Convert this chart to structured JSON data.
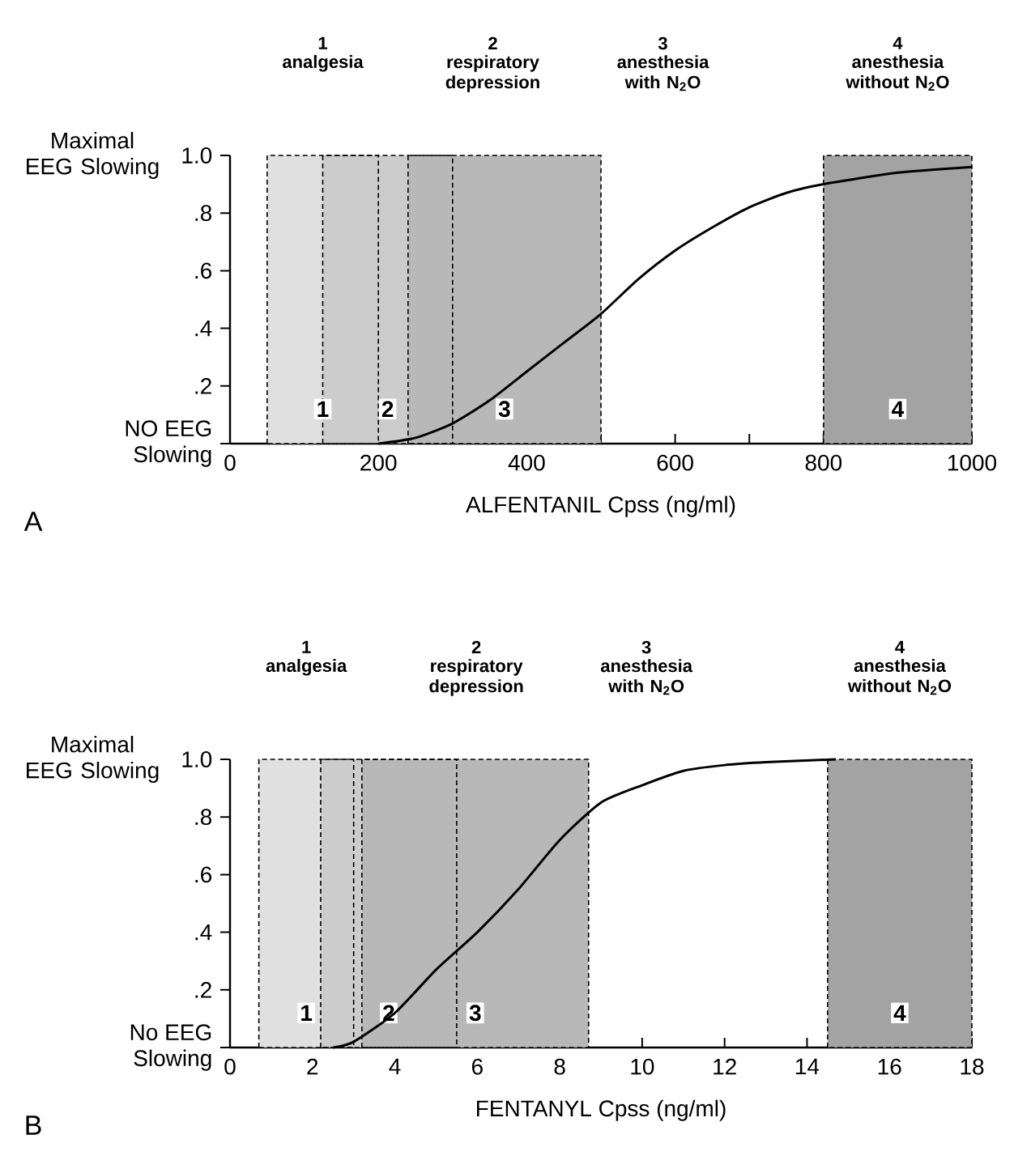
{
  "chart_data": [
    {
      "type": "line",
      "xlabel": "ALFENTANIL Cpss (ng/ml)",
      "ylabel": "Maximal EEG Slowing",
      "xlim": [
        0,
        1000
      ],
      "ylim": [
        0,
        1
      ],
      "xticks": [
        0,
        {
          "value": 100,
          "label": null
        },
        200,
        {
          "value": 300,
          "label": null
        },
        400,
        {
          "value": 500,
          "label": null
        },
        600,
        {
          "value": 700,
          "label": null
        },
        800,
        {
          "value": 900,
          "label": null
        },
        1000
      ],
      "yticks": [
        {
          "value": 0,
          "label": "NO EEG Slowing"
        },
        {
          "value": 0.2,
          "label": ".2"
        },
        {
          "value": 0.4,
          "label": ".4"
        },
        {
          "value": 0.6,
          "label": ".6"
        },
        {
          "value": 0.8,
          "label": ".8"
        },
        {
          "value": 1,
          "label": "1.0"
        }
      ],
      "series": [
        {
          "color": "#000000",
          "x": [
            200,
            250,
            300,
            350,
            400,
            450,
            500,
            550,
            600,
            650,
            700,
            750,
            800,
            900,
            1000
          ],
          "values": [
            0,
            0.02,
            0.07,
            0.15,
            0.25,
            0.35,
            0.45,
            0.57,
            0.67,
            0.75,
            0.82,
            0.87,
            0.9,
            0.94,
            0.96
          ]
        }
      ],
      "bands": [
        {
          "axis": "x",
          "from": 50,
          "to": 200,
          "label": "1"
        },
        {
          "axis": "x",
          "from": 125,
          "to": 300,
          "label": "2"
        },
        {
          "axis": "x",
          "from": 240,
          "to": 500,
          "label": "3"
        },
        {
          "axis": "x",
          "from": 800,
          "to": 1000,
          "label": "4"
        }
      ],
      "annotations": [
        "analgesia",
        "respiratory depression",
        "anesthesia with N$_{2}$O",
        "anesthesia without N$_{2}$O",
        "A"
      ]
    },
    {
      "type": "line",
      "xlabel": "FENTANYL Cpss (ng/ml)",
      "ylabel": "Maximal EEG Slowing",
      "xlim": [
        0,
        18
      ],
      "ylim": [
        0,
        1
      ],
      "xticks": [
        0,
        2,
        4,
        6,
        8,
        10,
        12,
        14,
        16,
        18
      ],
      "yticks": [
        {
          "value": 0,
          "label": "No EEG Slowing"
        },
        {
          "value": 0.2,
          "label": ".2"
        },
        {
          "value": 0.4,
          "label": ".4"
        },
        {
          "value": 0.6,
          "label": ".6"
        },
        {
          "value": 0.8,
          "label": ".8"
        },
        {
          "value": 1,
          "label": "1.0"
        }
      ],
      "series": [
        {
          "color": "#000000",
          "x": [
            2.5,
            3,
            4,
            5,
            6,
            7,
            8,
            9,
            10,
            11,
            12,
            13,
            14.7
          ],
          "values": [
            0,
            0.02,
            0.12,
            0.27,
            0.4,
            0.55,
            0.72,
            0.85,
            0.91,
            0.96,
            0.98,
            0.99,
            1.0
          ]
        }
      ],
      "bands": [
        {
          "axis": "x",
          "from": 0.7,
          "to": 3.0,
          "label": "1"
        },
        {
          "axis": "x",
          "from": 2.2,
          "to": 5.5,
          "label": "2"
        },
        {
          "axis": "x",
          "from": 3.2,
          "to": 8.7,
          "label": "3"
        },
        {
          "axis": "x",
          "from": 14.5,
          "to": 18,
          "label": "4"
        }
      ],
      "annotations": [
        "analgesia",
        "respiratory depression",
        "anesthesia with N$_{2}$O",
        "anesthesia without N$_{2}$O",
        "B"
      ]
    }
  ]
}
